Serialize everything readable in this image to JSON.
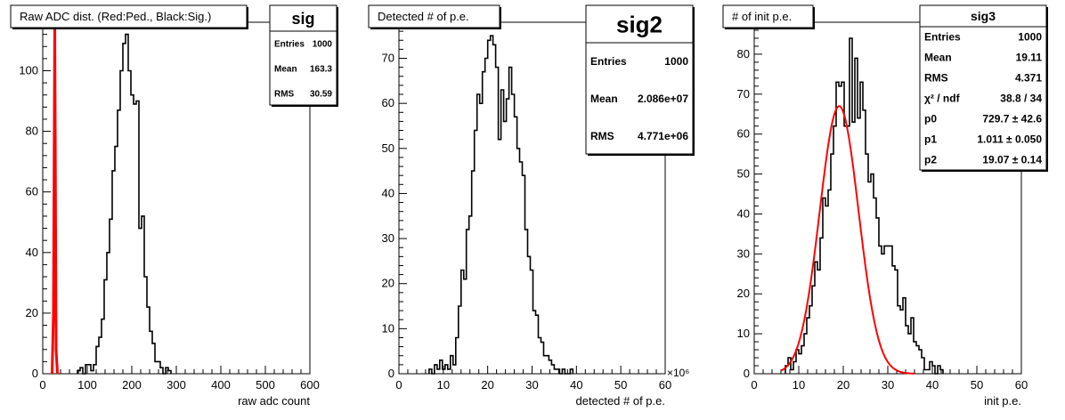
{
  "chart_data": [
    {
      "type": "histogram",
      "name": "sig",
      "title": "Raw ADC dist. (Red:Ped., Black:Sig.)",
      "xlabel": "raw adc count",
      "ylabel": "",
      "xlim": [
        0,
        600
      ],
      "ylim": [
        0,
        116
      ],
      "x_ticks": [
        0,
        100,
        200,
        300,
        400,
        500,
        600
      ],
      "x_tick_labels": [
        "0",
        "100",
        "200",
        "300",
        "400",
        "500",
        "600"
      ],
      "y_ticks": [
        0,
        20,
        40,
        60,
        80,
        100
      ],
      "y_tick_labels": [
        "0",
        "20",
        "40",
        "60",
        "80",
        "100"
      ],
      "bin_width": 6,
      "bin_start": 78,
      "series": [
        {
          "color": "#000000",
          "values": [
            1,
            2,
            0,
            3,
            3,
            1,
            3,
            9,
            12,
            18,
            31,
            40,
            51,
            67,
            75,
            87,
            100,
            109,
            112,
            100,
            92,
            89,
            90,
            48,
            52,
            32,
            22,
            14,
            10,
            4,
            4,
            2,
            0,
            2,
            1
          ]
        },
        {
          "color": "#ff0000",
          "style": "spike",
          "values_x": [
            24,
            27,
            30
          ],
          "values": [
            20,
            116,
            8
          ]
        }
      ],
      "stats": {
        "title": "sig",
        "rows": [
          {
            "label": "Entries",
            "value": "1000"
          },
          {
            "label": "Mean",
            "value": "163.3"
          },
          {
            "label": "RMS",
            "value": "30.59"
          }
        ]
      }
    },
    {
      "type": "histogram",
      "name": "sig2",
      "title": "Detected # of p.e.",
      "xlabel": "detected # of p.e.",
      "ylabel": "",
      "x_multiplier": "×10⁶",
      "xlim": [
        0,
        60
      ],
      "ylim": [
        0,
        78
      ],
      "x_ticks": [
        0,
        10,
        20,
        30,
        40,
        50,
        60
      ],
      "x_tick_labels": [
        "0",
        "10",
        "20",
        "30",
        "40",
        "50",
        "60"
      ],
      "y_ticks": [
        0,
        10,
        20,
        30,
        40,
        50,
        60,
        70
      ],
      "y_tick_labels": [
        "0",
        "10",
        "20",
        "30",
        "40",
        "50",
        "60",
        "70"
      ],
      "bin_width": 0.6,
      "bin_start": 6.8,
      "series": [
        {
          "color": "#000000",
          "values": [
            1,
            0,
            2,
            1,
            3,
            1,
            2,
            1,
            4,
            2,
            8,
            15,
            23,
            21,
            32,
            35,
            45,
            54,
            62,
            60,
            67,
            70,
            74,
            75,
            73,
            68,
            52,
            63,
            56,
            61,
            68,
            62,
            57,
            50,
            47,
            44,
            32,
            26,
            23,
            14,
            13,
            8,
            7,
            4,
            4,
            3,
            2,
            1,
            1,
            0,
            1,
            0,
            0,
            1
          ]
        }
      ],
      "stats": {
        "title": "sig2",
        "rows": [
          {
            "label": "Entries",
            "value": "1000"
          },
          {
            "label": "Mean",
            "value": "2.086e+07"
          },
          {
            "label": "RMS",
            "value": "4.771e+06"
          }
        ]
      }
    },
    {
      "type": "histogram",
      "name": "sig3",
      "title": "# of init p.e.",
      "xlabel": "init p.e.",
      "ylabel": "",
      "xlim": [
        0,
        60
      ],
      "ylim": [
        0,
        88
      ],
      "x_ticks": [
        0,
        10,
        20,
        30,
        40,
        50,
        60
      ],
      "x_tick_labels": [
        "0",
        "10",
        "20",
        "30",
        "40",
        "50",
        "60"
      ],
      "y_ticks": [
        0,
        10,
        20,
        30,
        40,
        50,
        60,
        70,
        80
      ],
      "y_tick_labels": [
        "0",
        "10",
        "20",
        "30",
        "40",
        "50",
        "60",
        "70",
        "80"
      ],
      "bin_width": 0.6,
      "bin_start": 7.0,
      "series": [
        {
          "color": "#000000",
          "values": [
            2,
            4,
            1,
            3,
            6,
            5,
            7,
            10,
            14,
            17,
            22,
            28,
            26,
            34,
            44,
            42,
            46,
            55,
            62,
            73,
            72,
            73,
            62,
            62,
            84,
            63,
            79,
            64,
            73,
            66,
            55,
            48,
            50,
            44,
            39,
            32,
            30,
            32,
            32,
            32,
            27,
            26,
            17,
            16,
            19,
            12,
            10,
            14,
            8,
            7,
            6,
            4,
            1,
            1,
            3,
            2,
            0,
            2,
            1
          ]
        },
        {
          "color": "#ff0000",
          "style": "gaussian-fit",
          "fit": {
            "p0": 729.7,
            "p1": 1.011,
            "p2": 19.07,
            "peak": 67,
            "mean": 19.07,
            "sigma": 4.37
          },
          "fit_range": [
            6,
            36
          ]
        }
      ],
      "stats": {
        "title": "sig3",
        "rows": [
          {
            "label": "Entries",
            "value": "1000"
          },
          {
            "label": "Mean",
            "value": "19.11"
          },
          {
            "label": "RMS",
            "value": "4.371"
          },
          {
            "label": "χ² / ndf",
            "value": "38.8 / 34"
          },
          {
            "label": "p0",
            "value": "729.7 ± 42.6"
          },
          {
            "label": "p1",
            "value": "1.011 ± 0.050"
          },
          {
            "label": "p2",
            "value": "19.07 ± 0.14"
          }
        ]
      }
    }
  ]
}
